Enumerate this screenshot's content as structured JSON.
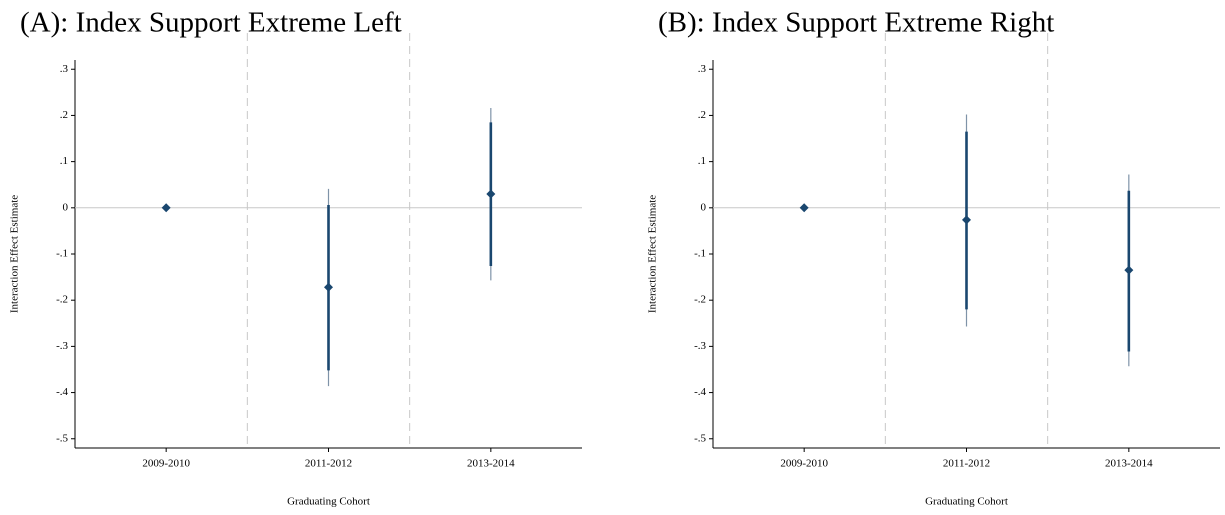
{
  "chart_data": [
    {
      "type": "errorbar",
      "title": "(A): Index Support Extreme Left",
      "ylabel": "Interaction Effect Estimate",
      "xlabel": "Graduating Cohort",
      "categories": [
        "2009-2010",
        "2011-2012",
        "2013-2014"
      ],
      "values": [
        0,
        -0.172,
        0.03
      ],
      "ci90_low": [
        null,
        -0.352,
        -0.126
      ],
      "ci90_high": [
        null,
        0.006,
        0.185
      ],
      "ci95_low": [
        null,
        -0.386,
        -0.157
      ],
      "ci95_high": [
        null,
        0.041,
        0.216
      ],
      "color": "#1a476f",
      "ci95_color": "#7f93a8",
      "ylim": [
        -0.52,
        0.32
      ],
      "yticks": [
        {
          "value": 0.3,
          "label": ".3"
        },
        {
          "value": 0.2,
          "label": ".2"
        },
        {
          "value": 0.1,
          "label": ".1"
        },
        0,
        {
          "value": -0.1,
          "label": "-.1"
        },
        {
          "value": -0.2,
          "label": "-.2"
        },
        {
          "value": -0.3,
          "label": "-.3"
        },
        {
          "value": -0.4,
          "label": "-.4"
        },
        {
          "value": -0.5,
          "label": "-.5"
        }
      ],
      "refline": 0
    },
    {
      "type": "errorbar",
      "title": "(B): Index Support Extreme Right",
      "ylabel": "Interaction Effect Estimate",
      "xlabel": "Graduating Cohort",
      "categories": [
        "2009-2010",
        "2011-2012",
        "2013-2014"
      ],
      "values": [
        0,
        -0.026,
        -0.135
      ],
      "ci90_low": [
        null,
        -0.22,
        -0.311
      ],
      "ci90_high": [
        null,
        0.165,
        0.037
      ],
      "ci95_low": [
        null,
        -0.257,
        -0.343
      ],
      "ci95_high": [
        null,
        0.202,
        0.072
      ],
      "color": "#1a476f",
      "ci95_color": "#7f93a8",
      "ylim": [
        -0.52,
        0.32
      ],
      "yticks": [
        {
          "value": 0.3,
          "label": ".3"
        },
        {
          "value": 0.2,
          "label": ".2"
        },
        {
          "value": 0.1,
          "label": ".1"
        },
        0,
        {
          "value": -0.1,
          "label": "-.1"
        },
        {
          "value": -0.2,
          "label": "-.2"
        },
        {
          "value": -0.3,
          "label": "-.3"
        },
        {
          "value": -0.4,
          "label": "-.4"
        },
        {
          "value": -0.5,
          "label": "-.5"
        }
      ],
      "refline": 0
    }
  ]
}
